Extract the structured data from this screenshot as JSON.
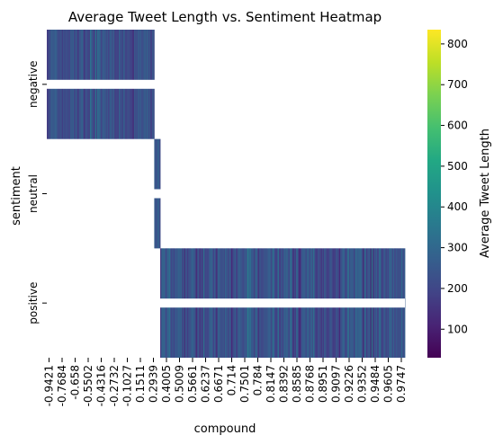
{
  "chart_data": {
    "type": "heatmap",
    "title": "Average Tweet Length vs. Sentiment Heatmap",
    "xlabel": "compound",
    "ylabel": "sentiment",
    "colorbar_label": "Average Tweet Length",
    "colormap": "viridis",
    "rows": [
      "negative",
      "neutral",
      "positive"
    ],
    "row_tick_labels": [
      "negative",
      "neutral",
      "positive"
    ],
    "x_tick_labels": [
      "-0.9421",
      "-0.7684",
      "-0.658",
      "-0.5502",
      "-0.4316",
      "-0.2732",
      "-0.1027",
      "0.1511",
      "0.2939",
      "0.4005",
      "0.5009",
      "0.5661",
      "0.6237",
      "0.6671",
      "0.714",
      "0.7501",
      "0.784",
      "0.8147",
      "0.8392",
      "0.8585",
      "0.8768",
      "0.8951",
      "0.9097",
      "0.9226",
      "0.9352",
      "0.9484",
      "0.9605",
      "0.9747"
    ],
    "colorbar_ticks": [
      100,
      200,
      300,
      400,
      500,
      600,
      700,
      800
    ],
    "color_range": [
      30,
      835
    ],
    "row_column_share": {
      "negative": 0.3,
      "neutral": 0.0167,
      "positive": 0.6833
    },
    "typical_value": 230,
    "grid": false
  }
}
